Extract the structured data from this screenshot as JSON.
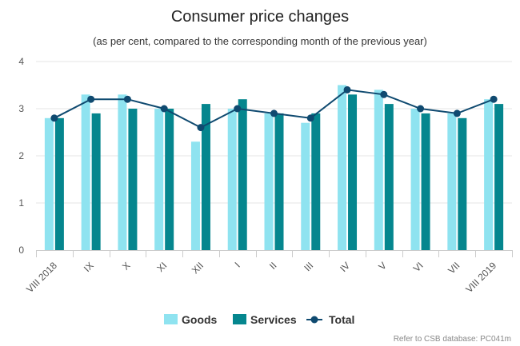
{
  "chart_data": {
    "type": "bar",
    "title": "Consumer price changes",
    "subtitle": "(as per cent, compared to the corresponding month of the previous year)",
    "categories": [
      "VIII 2018",
      "IX",
      "X",
      "XI",
      "XII",
      "I",
      "II",
      "III",
      "IV",
      "V",
      "VI",
      "VII",
      "VIII 2019"
    ],
    "series": [
      {
        "name": "Goods",
        "type": "bar",
        "color": "#8fe3f0",
        "values": [
          2.8,
          3.3,
          3.3,
          3.0,
          2.3,
          3.0,
          2.9,
          2.7,
          3.5,
          3.4,
          3.0,
          2.9,
          3.2
        ]
      },
      {
        "name": "Services",
        "type": "bar",
        "color": "#05868e",
        "values": [
          2.8,
          2.9,
          3.0,
          3.0,
          3.1,
          3.2,
          2.9,
          2.9,
          3.3,
          3.1,
          2.9,
          2.8,
          3.1
        ]
      },
      {
        "name": "Total",
        "type": "line",
        "color": "#0f4a70",
        "values": [
          2.8,
          3.2,
          3.2,
          3.0,
          2.6,
          3.0,
          2.9,
          2.8,
          3.4,
          3.3,
          3.0,
          2.9,
          3.2
        ]
      }
    ],
    "ylim": [
      0,
      4
    ],
    "yticks": [
      0,
      1,
      2,
      3,
      4
    ],
    "grid": true,
    "legend": "bottom-center",
    "xlabel": "",
    "ylabel": ""
  },
  "credit": "Refer to CSB database: PC041m"
}
